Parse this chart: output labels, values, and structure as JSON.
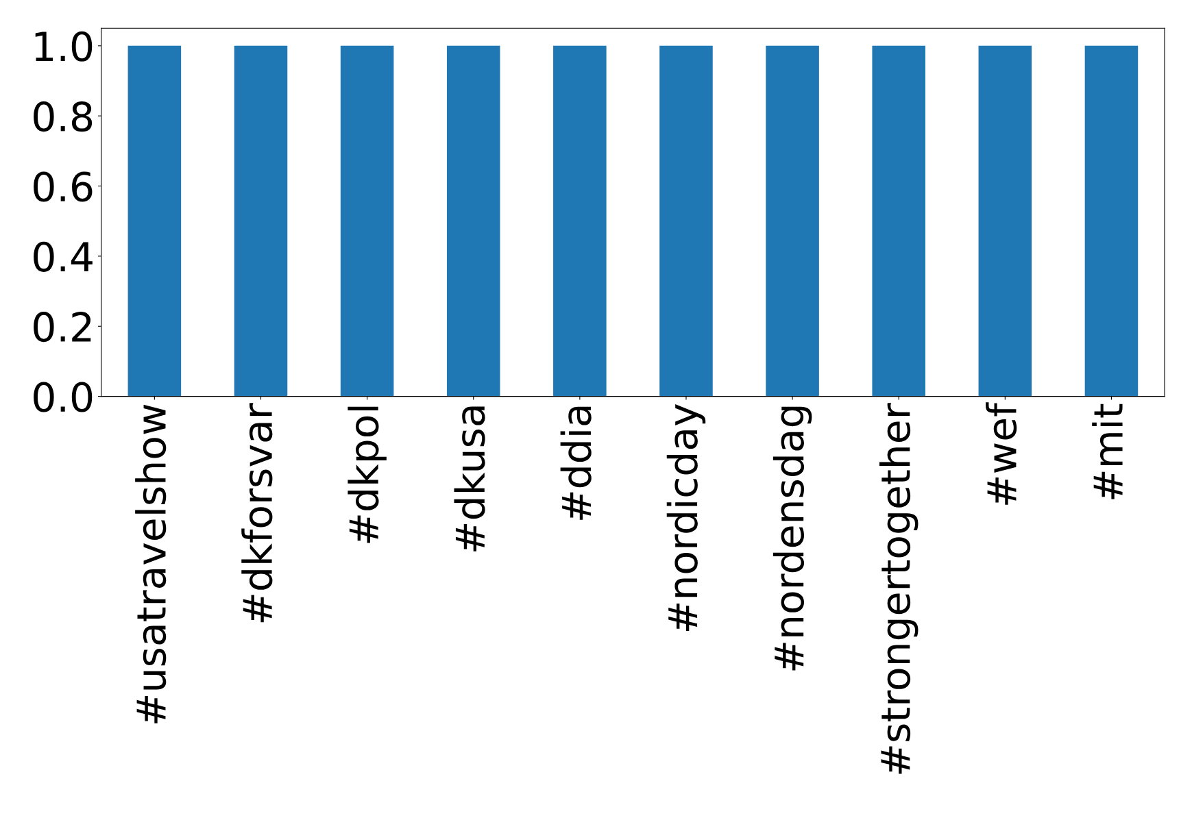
{
  "chart_data": {
    "type": "bar",
    "categories": [
      "#usatravelshow",
      "#dkforsvar",
      "#dkpol",
      "#dkusa",
      "#ddia",
      "#nordicday",
      "#nordensdag",
      "#strongertogether",
      "#wef",
      "#mit"
    ],
    "values": [
      1.0,
      1.0,
      1.0,
      1.0,
      1.0,
      1.0,
      1.0,
      1.0,
      1.0,
      1.0
    ],
    "color": "#1f77b4",
    "ylim": [
      0,
      1.05
    ],
    "yticks": [
      {
        "value": 0,
        "label": "0.0"
      },
      0.2,
      0.4,
      0.6,
      0.8,
      {
        "value": 1,
        "label": "1.0"
      }
    ],
    "grid": false,
    "legend": false
  }
}
